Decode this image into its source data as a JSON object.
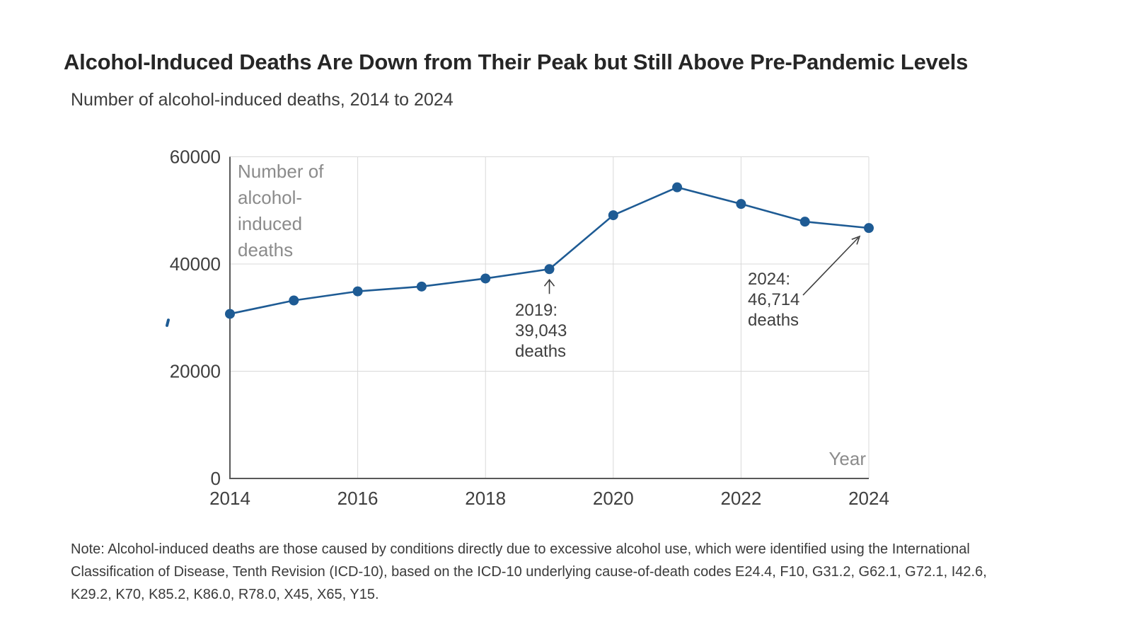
{
  "header": {
    "title": "Alcohol-Induced Deaths Are Down from Their Peak but Still Above Pre-Pandemic Levels",
    "subtitle": "Number of alcohol-induced deaths, 2014 to 2024"
  },
  "chart_data": {
    "type": "line",
    "title": "Alcohol-Induced Deaths Are Down from Their Peak but Still Above Pre-Pandemic Levels",
    "subtitle": "Number of alcohol-induced deaths, 2014 to 2024",
    "x": [
      2014,
      2015,
      2016,
      2017,
      2018,
      2019,
      2020,
      2021,
      2022,
      2023,
      2024
    ],
    "series": [
      {
        "name": "Number of alcohol-induced deaths",
        "values": [
          30700,
          33200,
          34900,
          35800,
          37300,
          39043,
          49100,
          54300,
          51200,
          47900,
          46714
        ]
      }
    ],
    "xlabel": "Year",
    "ylabel": "Number of alcohol-induced deaths",
    "ylabel_lines": [
      "Number of",
      "alcohol-",
      "induced",
      "deaths"
    ],
    "ylim": [
      0,
      60000
    ],
    "yticks": [
      0,
      20000,
      40000,
      60000
    ],
    "xticks": [
      2014,
      2016,
      2018,
      2020,
      2022,
      2024
    ],
    "grid": true,
    "legend_position": "none",
    "line_color": "#1e5b94",
    "annotations": [
      {
        "lines": [
          "2019:",
          "39,043",
          "deaths"
        ],
        "target_year": 2019,
        "target_value": 39043
      },
      {
        "lines": [
          "2024:",
          "46,714",
          "deaths"
        ],
        "target_year": 2024,
        "target_value": 46714
      }
    ]
  },
  "note": {
    "lines": [
      "Note: Alcohol-induced deaths are those caused by conditions directly due to excessive alcohol use, which were identified using the International",
      "Classification of Disease, Tenth Revision (ICD-10), based on the ICD-10 underlying cause-of-death codes E24.4, F10, G31.2, G62.1, G72.1, I42.6,",
      "K29.2, K70, K85.2, K86.0, R78.0, X45, X65, Y15."
    ]
  },
  "colors": {
    "line": "#1e5b94",
    "grid": "#d9d9d9",
    "axis": "#595959",
    "tick_text": "#3f3f3f",
    "annotation_text": "#3f3f3f",
    "inplot_label": "#8b8b8b",
    "title_text": "#262626",
    "body_text": "#3a3a3a"
  }
}
